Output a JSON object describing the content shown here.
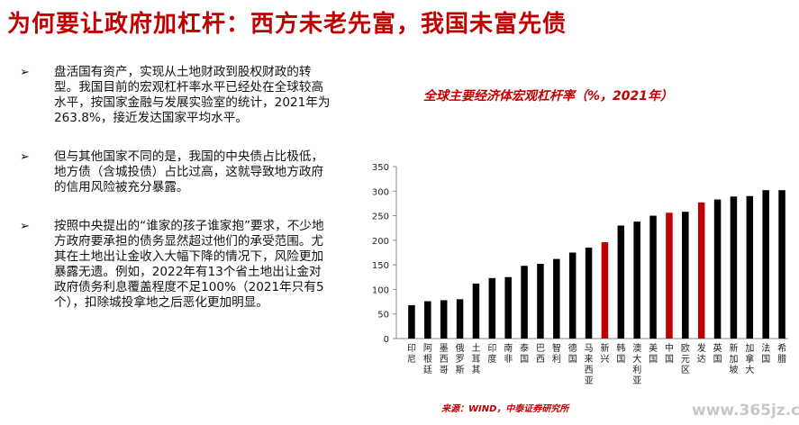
{
  "title": "为何要让政府加杠杆：西方未老先富，我国未富先债",
  "bullets": [
    {
      "marker": "➢",
      "text": "盘活国有资产，实现从土地财政到股权财政的转型。我国目前的宏观杠杆率水平已经处在全球较高水平，按国家金融与发展实验室的统计，2021年为263.8%，接近发达国家平均水平。"
    },
    {
      "marker": "➢",
      "text": "但与其他国家不同的是，我国的中央债占比极低，地方债（含城投债）占比过高，这就导致地方政府的信用风险被充分暴露。"
    },
    {
      "marker": "➢",
      "text": "按照中央提出的“谁家的孩子谁家抱”要求，不少地方政府要承担的债务显然超过他们的承受范围。尤其在土地出让金收入大幅下降的情况下，风险更加暴露无遗。例如，2022年有13个省土地出让金对政府债务利息覆盖程度不足100%（2021年只有5个），扣除城投拿地之后恶化更加明显。"
    }
  ],
  "chart_title": "全球主要经济体宏观杠杆率（%，2021年）",
  "source": "来源：WIND，中泰证券研究所",
  "watermark": "www.365jz.com",
  "chart_data": {
    "type": "bar",
    "ylim": [
      0,
      350
    ],
    "yticks": [
      0,
      50,
      100,
      150,
      200,
      250,
      300,
      350
    ],
    "categories": [
      "印尼",
      "阿根廷",
      "墨西哥",
      "俄罗斯",
      "土耳其",
      "印度",
      "南非",
      "泰国",
      "巴西",
      "智利",
      "德国",
      "马来西亚",
      "新兴",
      "韩国",
      "澳大利亚",
      "美国",
      "中国",
      "欧元区",
      "发达",
      "英国",
      "新加坡",
      "加拿大",
      "法国",
      "希腊"
    ],
    "values": [
      68,
      76,
      78,
      80,
      112,
      123,
      125,
      148,
      152,
      162,
      175,
      185,
      196,
      230,
      238,
      250,
      256,
      258,
      277,
      283,
      289,
      290,
      302,
      302
    ],
    "highlight": [
      "新兴",
      "中国",
      "发达"
    ],
    "colors": {
      "normal": "#000000",
      "highlight": "#c00000"
    }
  }
}
